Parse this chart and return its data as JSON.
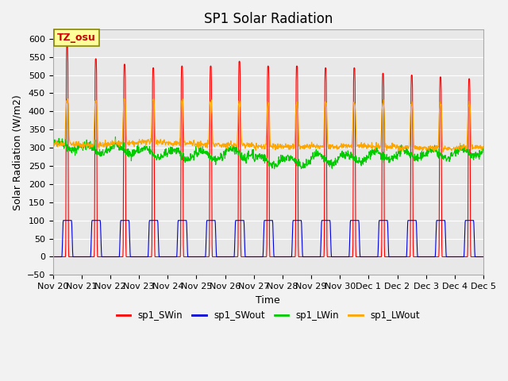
{
  "title": "SP1 Solar Radiation",
  "ylabel": "Solar Radiation (W/m2)",
  "xlabel": "Time",
  "ylim": [
    -50,
    625
  ],
  "yticks": [
    -50,
    0,
    50,
    100,
    150,
    200,
    250,
    300,
    350,
    400,
    450,
    500,
    550,
    600
  ],
  "tz_label": "TZ_osu",
  "colors": {
    "SWin": "#ff0000",
    "SWout": "#0000dd",
    "LWin": "#00cc00",
    "LWout": "#ffa500"
  },
  "legend_labels": [
    "sp1_SWin",
    "sp1_SWout",
    "sp1_LWin",
    "sp1_LWout"
  ],
  "x_tick_labels": [
    "Nov 20",
    "Nov 21",
    "Nov 22",
    "Nov 23",
    "Nov 24",
    "Nov 25",
    "Nov 26",
    "Nov 27",
    "Nov 28",
    "Nov 29",
    "Nov 30",
    "Dec 1",
    "Dec 2",
    "Dec 3",
    "Dec 4",
    "Dec 5"
  ],
  "n_days": 15,
  "plot_bg": "#e8e8e8",
  "fig_bg": "#f2f2f2",
  "grid_color": "#ffffff",
  "title_fontsize": 12,
  "label_fontsize": 9,
  "tick_fontsize": 8,
  "SWin_peaks": [
    580,
    545,
    530,
    520,
    525,
    525,
    538,
    525,
    525,
    520,
    520,
    505,
    500,
    495,
    490
  ],
  "LWin_base": [
    305,
    295,
    295,
    285,
    282,
    280,
    285,
    265,
    262,
    268,
    272,
    278,
    282,
    283,
    287
  ],
  "LWout_base": [
    310,
    308,
    312,
    316,
    312,
    308,
    308,
    303,
    303,
    303,
    305,
    303,
    300,
    298,
    302
  ],
  "LWout_peak_add": 120,
  "SWout_flat": 100
}
